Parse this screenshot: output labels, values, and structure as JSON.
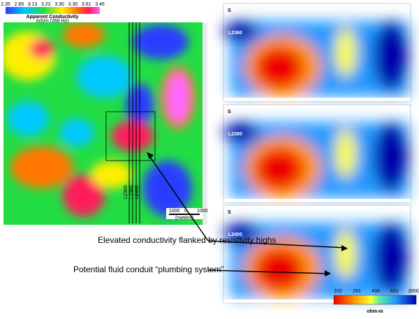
{
  "map": {
    "legend_title": "Apparent Conductivity",
    "legend_unit": "mS/m  (266 Hz)",
    "legend_ticks": [
      "2.35",
      "2.89",
      "3.13",
      "3.22",
      "3.30",
      "3.30",
      "3.61",
      "3.46"
    ],
    "lines": [
      "L2360",
      "L2380",
      "L2400"
    ],
    "scale_ticks": [
      "1000",
      "0",
      "1000"
    ],
    "scale_unit": "(meters)"
  },
  "sections": [
    {
      "side": "S",
      "line": "L2360"
    },
    {
      "side": "S",
      "line": "L2380"
    },
    {
      "side": "S",
      "line": "L2400"
    }
  ],
  "annotations": [
    "Elevated conductivity flanked by resistivity highs",
    "Potential fluid conduit “plumbing system”"
  ],
  "colorbar": {
    "ticks": [
      "102",
      "291",
      "436",
      "631",
      "2000"
    ],
    "unit": "ohm-m"
  }
}
